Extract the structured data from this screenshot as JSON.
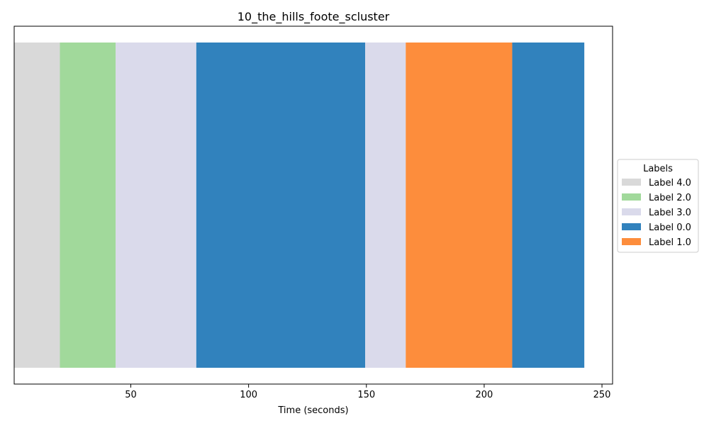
{
  "chart_data": {
    "type": "bar",
    "orientation": "horizontal-timeline",
    "title": "10_the_hills_foote_scluster",
    "xlabel": "Time (seconds)",
    "ylabel": "",
    "xlim": [
      0.5,
      254.5
    ],
    "xticks": [
      50,
      100,
      150,
      200,
      250
    ],
    "grid": false,
    "legend": {
      "title": "Labels",
      "placement": "center-right-outside",
      "entries": [
        {
          "label": "Label 4.0",
          "color": "#d9d9d9"
        },
        {
          "label": "Label 2.0",
          "color": "#a1d99b"
        },
        {
          "label": "Label 3.0",
          "color": "#dadaeb"
        },
        {
          "label": "Label 0.0",
          "color": "#3182bd"
        },
        {
          "label": "Label 1.0",
          "color": "#fd8d3c"
        }
      ]
    },
    "segments": [
      {
        "label": "Label 4.0",
        "start": 0.5,
        "end": 19.9
      },
      {
        "label": "Label 2.0",
        "start": 19.9,
        "end": 43.6
      },
      {
        "label": "Label 3.0",
        "start": 43.6,
        "end": 77.8
      },
      {
        "label": "Label 0.0",
        "start": 77.8,
        "end": 149.5
      },
      {
        "label": "Label 3.0",
        "start": 149.5,
        "end": 166.7
      },
      {
        "label": "Label 1.0",
        "start": 166.7,
        "end": 211.9
      },
      {
        "label": "Label 0.0",
        "start": 211.9,
        "end": 242.5
      }
    ]
  }
}
